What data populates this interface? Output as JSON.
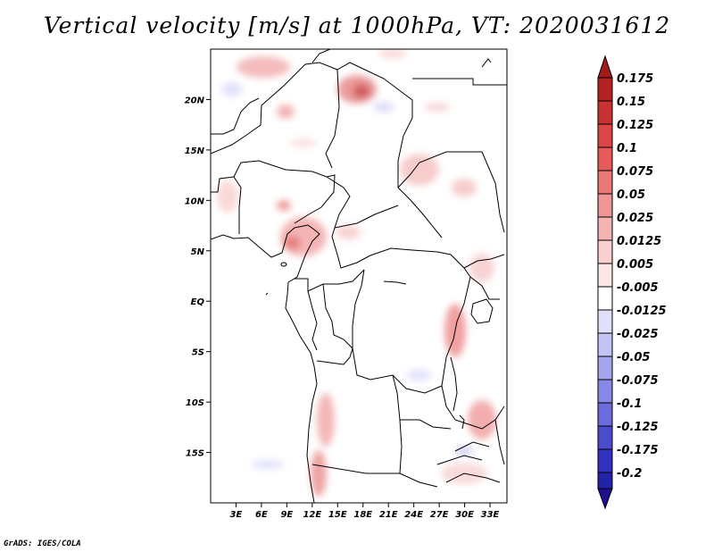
{
  "title": "Vertical velocity [m/s] at 1000hPa, VT: 2020031612",
  "credit": "GrADS: IGES/COLA",
  "map": {
    "lon_range": [
      0,
      35
    ],
    "lat_range": [
      -20,
      25
    ],
    "lat_labels": [
      {
        "value": 20,
        "text": "20N"
      },
      {
        "value": 15,
        "text": "15N"
      },
      {
        "value": 10,
        "text": "10N"
      },
      {
        "value": 5,
        "text": "5N"
      },
      {
        "value": 0,
        "text": "EQ"
      },
      {
        "value": -5,
        "text": "5S"
      },
      {
        "value": -10,
        "text": "10S"
      },
      {
        "value": -15,
        "text": "15S"
      }
    ],
    "lon_labels": [
      {
        "value": 3,
        "text": "3E"
      },
      {
        "value": 6,
        "text": "6E"
      },
      {
        "value": 9,
        "text": "9E"
      },
      {
        "value": 12,
        "text": "12E"
      },
      {
        "value": 15,
        "text": "15E"
      },
      {
        "value": 18,
        "text": "18E"
      },
      {
        "value": 21,
        "text": "21E"
      },
      {
        "value": 24,
        "text": "24E"
      },
      {
        "value": 27,
        "text": "27E"
      },
      {
        "value": 30,
        "text": "30E"
      },
      {
        "value": 33,
        "text": "33E"
      }
    ]
  },
  "colorbar": {
    "top_color": "#a01c1c",
    "bottom_color": "#1e0f8c",
    "levels": [
      {
        "label": "0.175",
        "color": "#b42323"
      },
      {
        "label": "0.15",
        "color": "#c83232"
      },
      {
        "label": "0.125",
        "color": "#dc4646"
      },
      {
        "label": "0.1",
        "color": "#e65a5a"
      },
      {
        "label": "0.075",
        "color": "#ec7878"
      },
      {
        "label": "0.05",
        "color": "#f09696"
      },
      {
        "label": "0.025",
        "color": "#f5b4b4"
      },
      {
        "label": "0.0125",
        "color": "#f9cfcf"
      },
      {
        "label": "0.005",
        "color": "#fce6e6"
      },
      {
        "label": "-0.005",
        "color": "#ffffff"
      },
      {
        "label": "-0.0125",
        "color": "#e0e0fb"
      },
      {
        "label": "-0.025",
        "color": "#c4c4f5"
      },
      {
        "label": "-0.05",
        "color": "#a5a5ee"
      },
      {
        "label": "-0.075",
        "color": "#8787e6"
      },
      {
        "label": "-0.1",
        "color": "#6c6cdc"
      },
      {
        "label": "-0.125",
        "color": "#4b4bcd"
      },
      {
        "label": "-0.175",
        "color": "#3232be"
      },
      {
        "label": "-0.2",
        "color": "#2323aa"
      }
    ]
  }
}
